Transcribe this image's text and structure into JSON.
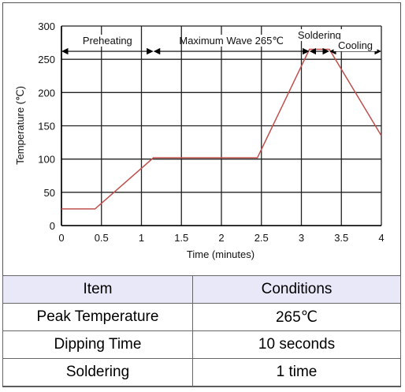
{
  "chart_data": {
    "type": "line",
    "xlabel": "Time (minutes)",
    "ylabel": "Temperature (℃)",
    "xlim": [
      0,
      4
    ],
    "ylim": [
      0,
      300
    ],
    "x_ticks": [
      "0",
      "0.5",
      "1",
      "1.5",
      "2",
      "2.5",
      "3",
      "3.5",
      "4"
    ],
    "y_ticks": [
      "0",
      "50",
      "100",
      "150",
      "200",
      "250",
      "300"
    ],
    "grid": true,
    "series": [
      {
        "color": "#c0504d",
        "points": [
          {
            "x": 0,
            "y": 25
          },
          {
            "x": 0.42,
            "y": 25
          },
          {
            "x": 1.15,
            "y": 102
          },
          {
            "x": 2.45,
            "y": 102
          },
          {
            "x": 3.1,
            "y": 265
          },
          {
            "x": 3.35,
            "y": 265
          },
          {
            "x": 4,
            "y": 135
          }
        ]
      }
    ],
    "annotations": [
      {
        "label": "Preheating",
        "x_start": 0,
        "x_end": 1.15
      },
      {
        "label": "Maximum Wave 265℃",
        "x_start": 1.15,
        "x_end": 3.1
      },
      {
        "label": "Soldering",
        "x_start": 3.1,
        "x_end": 3.35
      },
      {
        "label": "Cooling",
        "x_start": 3.35,
        "x_end": 4
      }
    ],
    "annotation_y": 262
  },
  "table": {
    "headers": [
      "Item",
      "Conditions"
    ],
    "rows": [
      [
        "Peak Temperature",
        "265℃"
      ],
      [
        "Dipping Time",
        "10 seconds"
      ],
      [
        "Soldering",
        "1 time"
      ]
    ]
  }
}
